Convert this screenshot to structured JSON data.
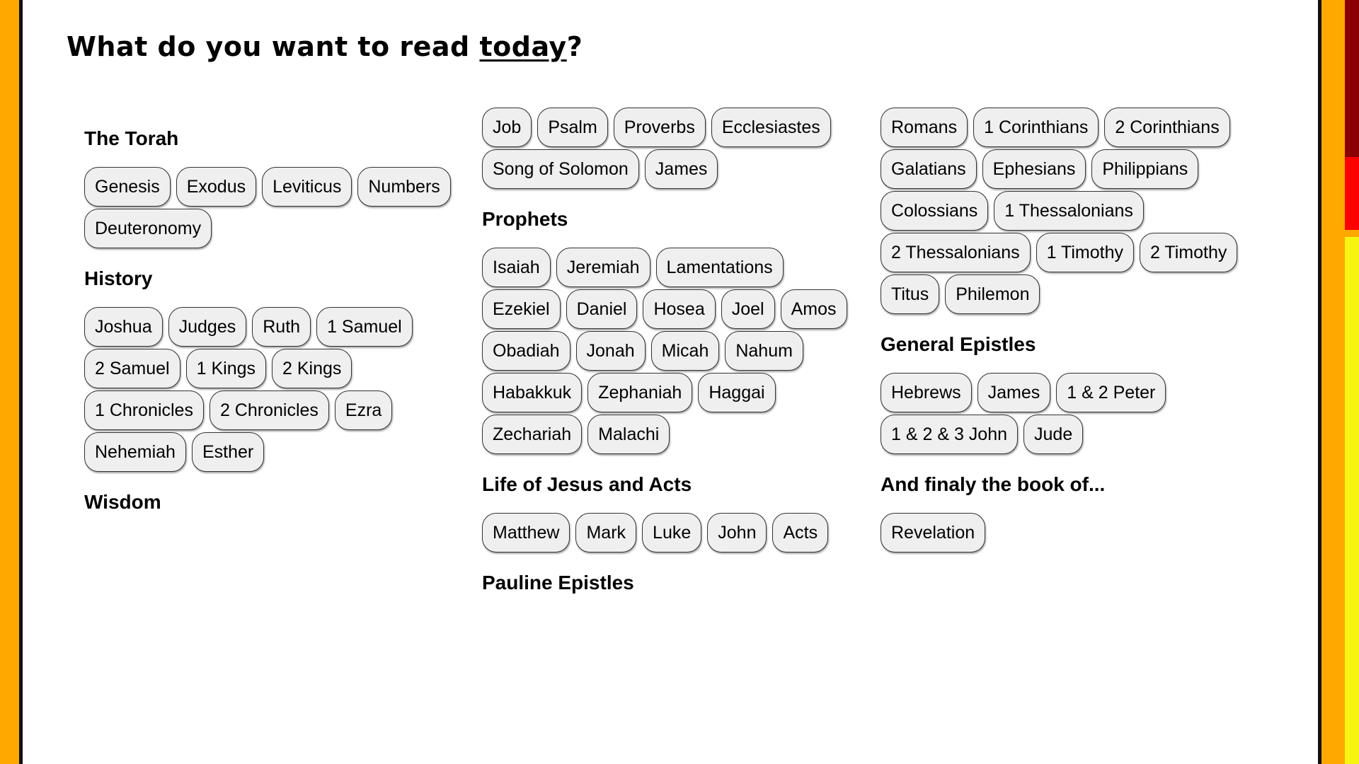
{
  "title": {
    "prefix": "What do you want to read ",
    "underlined": "today",
    "suffix": "?"
  },
  "colors": {
    "background": "#ffa800",
    "card": "#ffffff",
    "pill": "#efefef",
    "strip": [
      "#8b0000",
      "#ff0000",
      "#ffa800",
      "#f5f511"
    ]
  },
  "columns": [
    [
      {
        "heading": "The Torah",
        "books": [
          "Genesis",
          "Exodus",
          "Leviticus",
          "Numbers",
          "Deuteronomy"
        ]
      },
      {
        "heading": "History",
        "books": [
          "Joshua",
          "Judges",
          "Ruth",
          "1 Samuel",
          "2 Samuel",
          "1 Kings",
          "2 Kings",
          "1 Chronicles",
          "2 Chronicles",
          "Ezra",
          "Nehemiah",
          "Esther"
        ]
      },
      {
        "heading": "Wisdom",
        "books": []
      }
    ],
    [
      {
        "heading": "",
        "books": [
          "Job",
          "Psalm",
          "Proverbs",
          "Ecclesiastes",
          "Song of Solomon",
          "James"
        ]
      },
      {
        "heading": "Prophets",
        "books": [
          "Isaiah",
          "Jeremiah",
          "Lamentations",
          "Ezekiel",
          "Daniel",
          "Hosea",
          "Joel",
          "Amos",
          "Obadiah",
          "Jonah",
          "Micah",
          "Nahum",
          "Habakkuk",
          "Zephaniah",
          "Haggai",
          "Zechariah",
          "Malachi"
        ]
      },
      {
        "heading": "Life of Jesus and Acts",
        "books": [
          "Matthew",
          "Mark",
          "Luke",
          "John",
          "Acts"
        ]
      },
      {
        "heading": "Pauline Epistles",
        "books": []
      }
    ],
    [
      {
        "heading": "",
        "books": [
          "Romans",
          "1 Corinthians",
          "2 Corinthians",
          "Galatians",
          "Ephesians",
          "Philippians",
          "Colossians",
          "1 Thessalonians",
          "2 Thessalonians",
          "1 Timothy",
          "2 Timothy",
          "Titus",
          "Philemon"
        ]
      },
      {
        "heading": "General Epistles",
        "books": [
          "Hebrews",
          "James",
          "1 & 2 Peter",
          "1 & 2 & 3 John",
          "Jude"
        ]
      },
      {
        "heading": "And finaly the book of...",
        "books": [
          "Revelation"
        ]
      }
    ]
  ]
}
